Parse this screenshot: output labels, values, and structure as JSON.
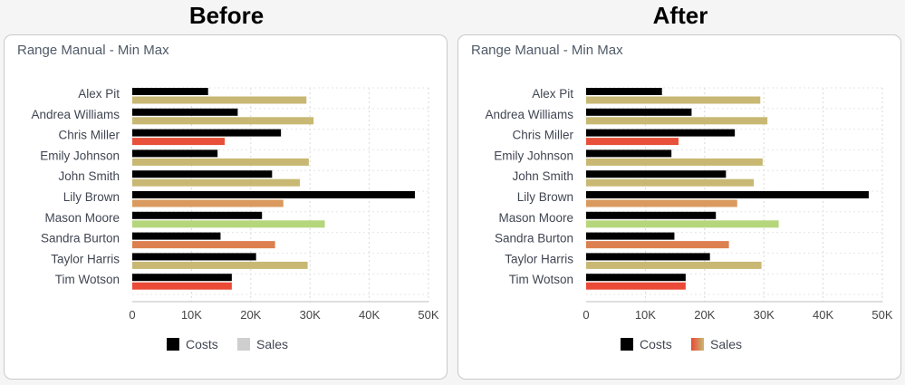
{
  "headings": {
    "before": "Before",
    "after": "After"
  },
  "chart_data": [
    {
      "type": "bar",
      "orientation": "horizontal",
      "title": "Range Manual - Min Max",
      "categories": [
        "Alex Pit",
        "Andrea Williams",
        "Chris Miller",
        "Emily Johnson",
        "John Smith",
        "Lily Brown",
        "Mason Moore",
        "Sandra Burton",
        "Taylor Harris",
        "Tim Wotson"
      ],
      "series": [
        {
          "name": "Costs",
          "values": [
            12800,
            17800,
            25100,
            14400,
            23600,
            47700,
            21900,
            14900,
            20900,
            16800
          ],
          "color": "#000000"
        },
        {
          "name": "Sales",
          "values": [
            29400,
            30600,
            15600,
            29800,
            28300,
            25500,
            32500,
            24100,
            29600,
            16800
          ],
          "colors": [
            "#c8b873",
            "#c8b873",
            "#e8503a",
            "#c8b873",
            "#c8b873",
            "#da9a5f",
            "#b5d67b",
            "#dd8050",
            "#c8b873",
            "#ea4a36"
          ]
        }
      ],
      "xlim": [
        0,
        50000
      ],
      "xticks": [
        "0",
        "10K",
        "20K",
        "30K",
        "40K",
        "50K"
      ],
      "grid": true,
      "legend": {
        "position": "bottom",
        "items": [
          "Costs",
          "Sales"
        ],
        "swatches": [
          "#000000",
          "#cfcfcf"
        ]
      }
    },
    {
      "type": "bar",
      "orientation": "horizontal",
      "title": "Range Manual - Min Max",
      "categories": [
        "Alex Pit",
        "Andrea Williams",
        "Chris Miller",
        "Emily Johnson",
        "John Smith",
        "Lily Brown",
        "Mason Moore",
        "Sandra Burton",
        "Taylor Harris",
        "Tim Wotson"
      ],
      "series": [
        {
          "name": "Costs",
          "values": [
            12800,
            17800,
            25100,
            14400,
            23600,
            47700,
            21900,
            14900,
            20900,
            16800
          ],
          "color": "#000000"
        },
        {
          "name": "Sales",
          "values": [
            29400,
            30600,
            15600,
            29800,
            28300,
            25500,
            32500,
            24100,
            29600,
            16800
          ],
          "colors": [
            "#c8b873",
            "#c8b873",
            "#e8503a",
            "#c8b873",
            "#c8b873",
            "#da9a5f",
            "#b5d67b",
            "#dd8050",
            "#c8b873",
            "#ea4a36"
          ]
        }
      ],
      "xlim": [
        0,
        50000
      ],
      "xticks": [
        "0",
        "10K",
        "20K",
        "30K",
        "40K",
        "50K"
      ],
      "grid": true,
      "legend": {
        "position": "bottom",
        "items": [
          "Costs",
          "Sales"
        ],
        "swatches": [
          "#000000",
          "gradient:#e84a36,#c8b873"
        ]
      }
    }
  ]
}
